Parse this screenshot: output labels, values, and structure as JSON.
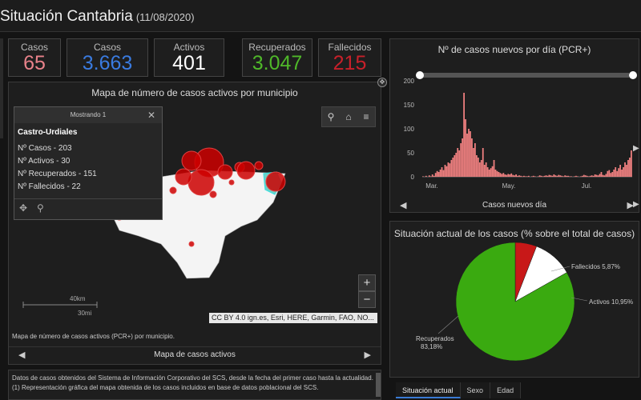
{
  "header": {
    "title": "Situación Cantabria",
    "date": "(11/08/2020)"
  },
  "kpis": [
    {
      "label": "Casos",
      "value": "65",
      "color": "#e8828a"
    },
    {
      "label": "Casos",
      "value": "3.663",
      "color": "#3a7be0"
    },
    {
      "label": "Activos",
      "value": "401",
      "color": "#ffffff"
    },
    {
      "label": "Recuperados",
      "value": "3.047",
      "color": "#4fb829"
    },
    {
      "label": "Fallecidos",
      "value": "215",
      "color": "#c8202a"
    }
  ],
  "map": {
    "title": "Mapa de número de casos activos por municipio",
    "popup": {
      "header": "Mostrando 1",
      "city": "Castro-Urdiales",
      "lines": [
        "Nº Casos - 203",
        "Nº Activos - 30",
        "Nº Recuperados - 151",
        "Nº Fallecidos - 22"
      ]
    },
    "scale_km": "40km",
    "scale_mi": "30mi",
    "attribution": "CC BY 4.0 ign.es, Esri, HERE, Garmin, FAO, NO...",
    "caption": "Mapa de número de casos activos (PCR+) por municipio.",
    "nav_label": "Mapa de casos activos"
  },
  "bar_chart": {
    "title": "Nº de casos nuevos por día (PCR+)",
    "nav_label": "Casos nuevos día",
    "color": "#f08080",
    "chart_data": {
      "type": "bar",
      "ylim": [
        0,
        200
      ],
      "yticks": [
        "200",
        "150",
        "100",
        "50",
        "0"
      ],
      "xticks": [
        "Mar.",
        "May.",
        "Jul."
      ],
      "values": [
        1,
        0,
        2,
        0,
        3,
        1,
        5,
        2,
        8,
        12,
        10,
        15,
        20,
        14,
        25,
        22,
        30,
        28,
        35,
        40,
        45,
        50,
        60,
        55,
        70,
        80,
        175,
        120,
        90,
        100,
        95,
        80,
        60,
        70,
        45,
        40,
        30,
        35,
        60,
        25,
        30,
        20,
        15,
        18,
        22,
        35,
        15,
        12,
        10,
        8,
        6,
        8,
        5,
        4,
        6,
        5,
        7,
        4,
        3,
        5,
        2,
        3,
        2,
        1,
        2,
        1,
        1,
        2,
        0,
        1,
        2,
        1,
        0,
        1,
        3,
        2,
        1,
        2,
        3,
        2,
        4,
        3,
        2,
        5,
        3,
        2,
        4,
        3,
        2,
        1,
        3,
        2,
        2,
        1,
        1,
        0,
        1,
        2,
        1,
        0,
        1,
        2,
        4,
        3,
        2,
        1,
        2,
        3,
        2,
        5,
        4,
        3,
        6,
        10,
        4,
        3,
        6,
        12,
        14,
        8,
        10,
        15,
        20,
        12,
        18,
        25,
        15,
        20,
        30,
        25,
        35,
        40,
        55
      ]
    }
  },
  "pie_chart": {
    "title": "Situación actual de los casos (% sobre el total de casos)",
    "chart_data": {
      "type": "pie",
      "slices": [
        {
          "name": "Recuperados",
          "label": "Recuperados",
          "value_label": "83,18%",
          "value": 83.18,
          "color": "#3aaa10"
        },
        {
          "name": "Activos",
          "label": "Activos 10,95%",
          "value": 10.95,
          "color": "#ffffff"
        },
        {
          "name": "Fallecidos",
          "label": "Fallecidos 5,87%",
          "value": 5.87,
          "color": "#c81818"
        }
      ]
    }
  },
  "footer": {
    "lines": [
      "Datos de casos obtenidos del Sistema de Información Corporativo del SCS, desde la fecha del primer caso hasta la actualidad.",
      "(1) Representación gráfica del mapa obtenida de los casos incluidos en base de datos poblacional del SCS."
    ]
  },
  "tabs": [
    {
      "label": "Situación actual",
      "active": true
    },
    {
      "label": "Sexo",
      "active": false
    },
    {
      "label": "Edad",
      "active": false
    }
  ]
}
